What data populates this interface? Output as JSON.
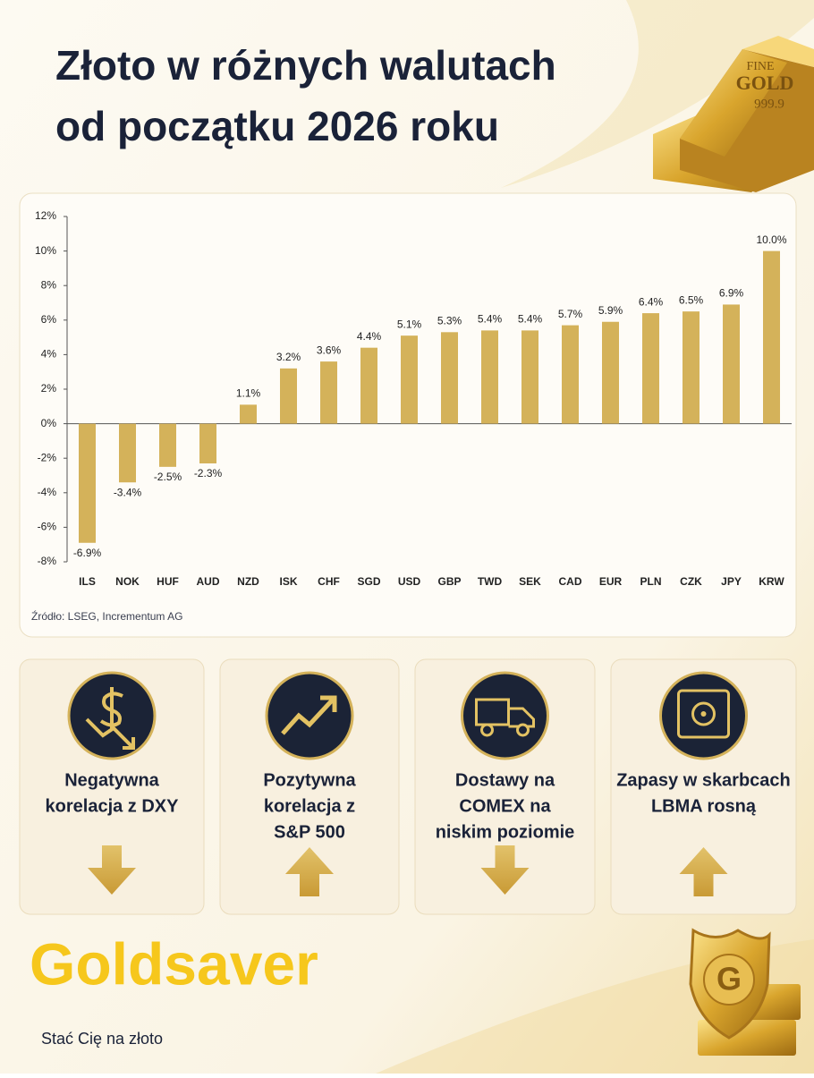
{
  "title_lines": [
    "Złoto w różnych walutach",
    "od początku 2026 roku"
  ],
  "chart_data": {
    "type": "bar",
    "categories": [
      "ILS",
      "NOK",
      "HUF",
      "AUD",
      "NZD",
      "ISK",
      "CHF",
      "SGD",
      "USD",
      "GBP",
      "TWD",
      "SEK",
      "CAD",
      "EUR",
      "PLN",
      "CZK",
      "JPY",
      "KRW"
    ],
    "values": [
      -6.9,
      -3.4,
      -2.5,
      -2.3,
      1.1,
      3.2,
      3.6,
      4.4,
      5.1,
      5.3,
      5.4,
      5.4,
      5.7,
      5.9,
      6.4,
      6.5,
      6.9,
      10.0
    ],
    "value_labels": [
      "-6.9%",
      "-3.4%",
      "-2.5%",
      "-2.3%",
      "1.1%",
      "3.2%",
      "3.6%",
      "4.4%",
      "5.1%",
      "5.3%",
      "5.4%",
      "5.4%",
      "5.7%",
      "5.9%",
      "6.4%",
      "6.5%",
      "6.9%",
      "10.0%"
    ],
    "color": "#d4b25a",
    "ylim": [
      -8,
      12
    ],
    "yticks": [
      {
        "value": -8,
        "label": "-8%"
      },
      {
        "value": -6,
        "label": "-6%"
      },
      {
        "value": -4,
        "label": "-4%"
      },
      {
        "value": -2,
        "label": "-2%"
      },
      {
        "value": 0,
        "label": "0%"
      },
      {
        "value": 2,
        "label": "2%"
      },
      {
        "value": 4,
        "label": "4%"
      },
      {
        "value": 6,
        "label": "6%"
      },
      {
        "value": 8,
        "label": "8%"
      },
      {
        "value": 10,
        "label": "10%"
      },
      {
        "value": 12,
        "label": "12%"
      }
    ],
    "grid": false,
    "source": "Źródło: LSEG, Incrementum AG"
  },
  "cards": [
    {
      "icon": "dollar-down",
      "lines": [
        "Negatywna",
        "korelacja z DXY"
      ],
      "arrow": "down"
    },
    {
      "icon": "trend-up",
      "lines": [
        "Pozytywna",
        "korelacja z",
        "S&P 500"
      ],
      "arrow": "up"
    },
    {
      "icon": "truck",
      "lines": [
        "Dostawy na",
        "COMEX na",
        "niskim poziomie"
      ],
      "arrow": "down"
    },
    {
      "icon": "safe",
      "lines": [
        "Zapasy w skarbcach",
        "LBMA rosną"
      ],
      "arrow": "up"
    }
  ],
  "bar_stamp": [
    "FINE",
    "GOLD",
    "999.9"
  ],
  "shield_letter": "G",
  "brand": "Goldsaver",
  "tagline": "Stać Cię na złoto"
}
